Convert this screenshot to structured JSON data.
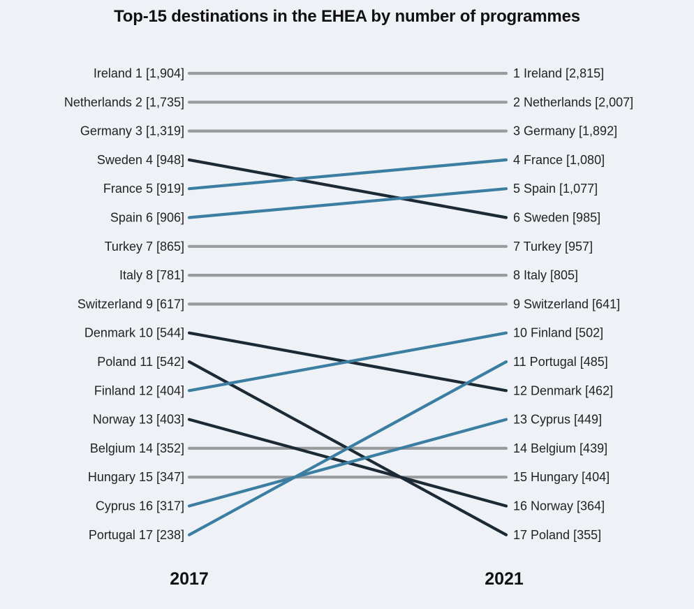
{
  "chart_data": {
    "type": "slope",
    "title": "Top-15 destinations in the EHEA by number of programmes",
    "periods": [
      "2017",
      "2021"
    ],
    "colors": {
      "unchanged": "#9a9b9d",
      "rank_down": "#1c2a36",
      "rank_up": "#3b7ea1"
    },
    "left": [
      {
        "country": "Ireland",
        "rank": 1,
        "value": 1904,
        "label": "Ireland 1 [1,904]"
      },
      {
        "country": "Netherlands",
        "rank": 2,
        "value": 1735,
        "label": "Netherlands 2 [1,735]"
      },
      {
        "country": "Germany",
        "rank": 3,
        "value": 1319,
        "label": "Germany 3 [1,319]"
      },
      {
        "country": "Sweden",
        "rank": 4,
        "value": 948,
        "label": "Sweden 4 [948]"
      },
      {
        "country": "France",
        "rank": 5,
        "value": 919,
        "label": "France 5 [919]"
      },
      {
        "country": "Spain",
        "rank": 6,
        "value": 906,
        "label": "Spain 6 [906]"
      },
      {
        "country": "Turkey",
        "rank": 7,
        "value": 865,
        "label": "Turkey 7 [865]"
      },
      {
        "country": "Italy",
        "rank": 8,
        "value": 781,
        "label": "Italy 8 [781]"
      },
      {
        "country": "Switzerland",
        "rank": 9,
        "value": 617,
        "label": "Switzerland 9 [617]"
      },
      {
        "country": "Denmark",
        "rank": 10,
        "value": 544,
        "label": "Denmark 10 [544]"
      },
      {
        "country": "Poland",
        "rank": 11,
        "value": 542,
        "label": "Poland 11 [542]"
      },
      {
        "country": "Finland",
        "rank": 12,
        "value": 404,
        "label": "Finland 12 [404]"
      },
      {
        "country": "Norway",
        "rank": 13,
        "value": 403,
        "label": "Norway 13 [403]"
      },
      {
        "country": "Belgium",
        "rank": 14,
        "value": 352,
        "label": "Belgium 14 [352]"
      },
      {
        "country": "Hungary",
        "rank": 15,
        "value": 347,
        "label": "Hungary 15 [347]"
      },
      {
        "country": "Cyprus",
        "rank": 16,
        "value": 317,
        "label": "Cyprus 16 [317]"
      },
      {
        "country": "Portugal",
        "rank": 17,
        "value": 238,
        "label": "Portugal 17 [238]"
      }
    ],
    "right": [
      {
        "country": "Ireland",
        "rank": 1,
        "value": 2815,
        "label": "1 Ireland [2,815]"
      },
      {
        "country": "Netherlands",
        "rank": 2,
        "value": 2007,
        "label": "2 Netherlands [2,007]"
      },
      {
        "country": "Germany",
        "rank": 3,
        "value": 1892,
        "label": "3 Germany [1,892]"
      },
      {
        "country": "France",
        "rank": 4,
        "value": 1080,
        "label": "4 France [1,080]"
      },
      {
        "country": "Spain",
        "rank": 5,
        "value": 1077,
        "label": "5 Spain [1,077]"
      },
      {
        "country": "Sweden",
        "rank": 6,
        "value": 985,
        "label": "6 Sweden [985]"
      },
      {
        "country": "Turkey",
        "rank": 7,
        "value": 957,
        "label": "7 Turkey [957]"
      },
      {
        "country": "Italy",
        "rank": 8,
        "value": 805,
        "label": "8 Italy [805]"
      },
      {
        "country": "Switzerland",
        "rank": 9,
        "value": 641,
        "label": "9 Switzerland [641]"
      },
      {
        "country": "Finland",
        "rank": 10,
        "value": 502,
        "label": "10 Finland [502]"
      },
      {
        "country": "Portugal",
        "rank": 11,
        "value": 485,
        "label": "11 Portugal [485]"
      },
      {
        "country": "Denmark",
        "rank": 12,
        "value": 462,
        "label": "12 Denmark [462]"
      },
      {
        "country": "Cyprus",
        "rank": 13,
        "value": 449,
        "label": "13 Cyprus [449]"
      },
      {
        "country": "Belgium",
        "rank": 14,
        "value": 439,
        "label": "14 Belgium [439]"
      },
      {
        "country": "Hungary",
        "rank": 15,
        "value": 404,
        "label": "15 Hungary [404]"
      },
      {
        "country": "Norway",
        "rank": 16,
        "value": 364,
        "label": "16 Norway [364]"
      },
      {
        "country": "Poland",
        "rank": 17,
        "value": 355,
        "label": "17 Poland [355]"
      }
    ]
  }
}
